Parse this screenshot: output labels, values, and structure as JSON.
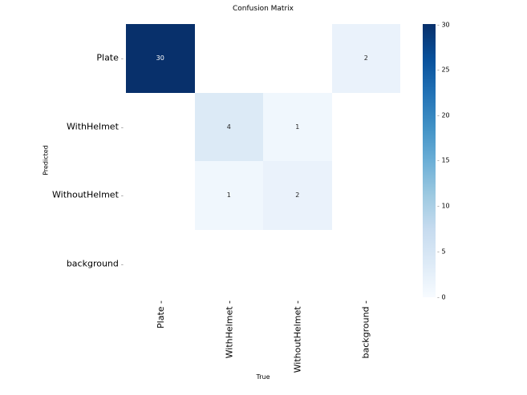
{
  "chart_data": {
    "type": "heatmap",
    "title": "Confusion Matrix",
    "xlabel": "True",
    "ylabel": "Predicted",
    "x_categories": [
      "Plate",
      "WithHelmet",
      "WithoutHelmet",
      "background"
    ],
    "y_categories": [
      "Plate",
      "WithHelmet",
      "WithoutHelmet",
      "background"
    ],
    "values": [
      [
        30,
        null,
        null,
        2
      ],
      [
        null,
        4,
        1,
        null
      ],
      [
        null,
        1,
        2,
        null
      ],
      [
        null,
        null,
        null,
        null
      ]
    ],
    "colormap": "Blues",
    "colorbar": {
      "min": 0,
      "max": 30,
      "ticks": [
        0,
        5,
        10,
        15,
        20,
        25,
        30
      ]
    },
    "legend_position": "right",
    "grid": false
  },
  "labels": {
    "title": "Confusion Matrix",
    "xlabel": "True",
    "ylabel": "Predicted",
    "rows": [
      "Plate",
      "WithHelmet",
      "WithoutHelmet",
      "background"
    ],
    "cols": [
      "Plate",
      "WithHelmet",
      "WithoutHelmet",
      "background"
    ],
    "cbar_ticks": [
      "0",
      "5",
      "10",
      "15",
      "20",
      "25",
      "30"
    ]
  }
}
